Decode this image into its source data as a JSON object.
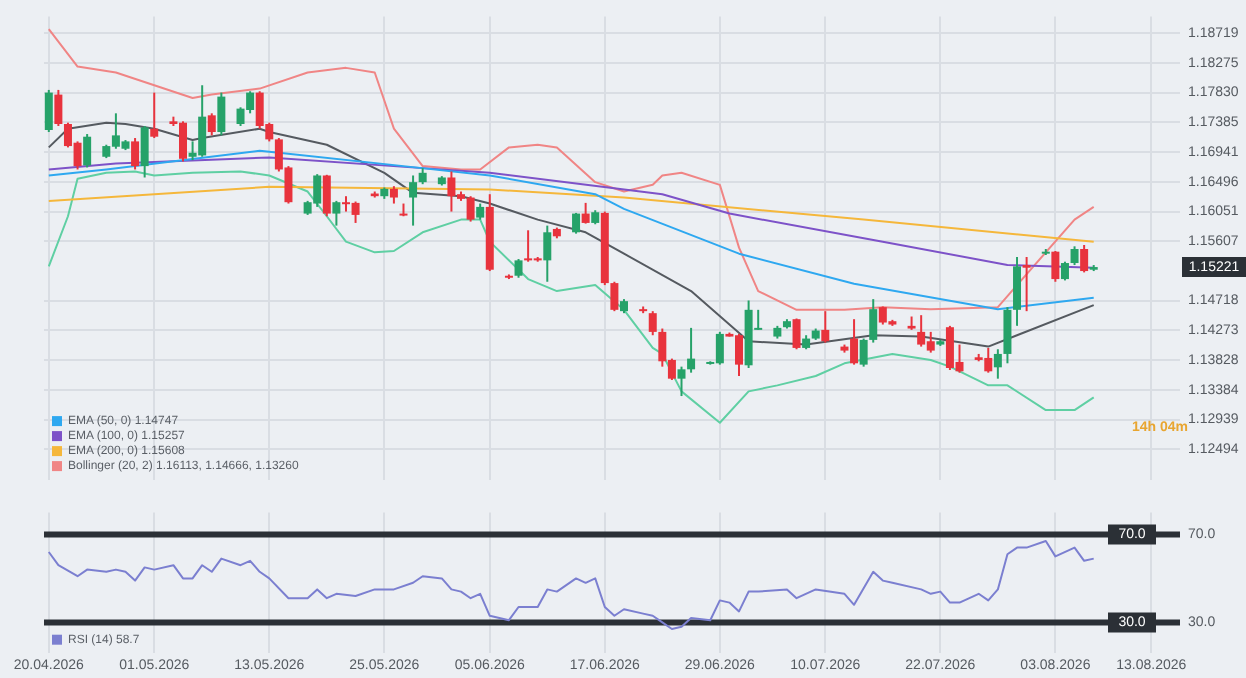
{
  "chart_data": [
    {
      "type": "candlestick",
      "x": [
        "2026-04-20",
        "2026-04-21",
        "2026-04-22",
        "2026-04-23",
        "2026-04-24",
        "2026-04-26",
        "2026-04-27",
        "2026-04-28",
        "2026-04-29",
        "2026-04-30",
        "2026-05-01",
        "2026-05-03",
        "2026-05-04",
        "2026-05-05",
        "2026-05-06",
        "2026-05-07",
        "2026-05-08",
        "2026-05-10",
        "2026-05-11",
        "2026-05-12",
        "2026-05-13",
        "2026-05-14",
        "2026-05-15",
        "2026-05-17",
        "2026-05-18",
        "2026-05-19",
        "2026-05-20",
        "2026-05-21",
        "2026-05-22",
        "2026-05-24",
        "2026-05-25",
        "2026-05-26",
        "2026-05-27",
        "2026-05-28",
        "2026-05-29",
        "2026-05-31",
        "2026-06-01",
        "2026-06-02",
        "2026-06-03",
        "2026-06-04",
        "2026-06-05",
        "2026-06-07",
        "2026-06-08",
        "2026-06-09",
        "2026-06-10",
        "2026-06-11",
        "2026-06-12",
        "2026-06-14",
        "2026-06-15",
        "2026-06-16",
        "2026-06-17",
        "2026-06-18",
        "2026-06-19",
        "2026-06-21",
        "2026-06-22",
        "2026-06-23",
        "2026-06-24",
        "2026-06-25",
        "2026-06-26",
        "2026-06-28",
        "2026-06-29",
        "2026-06-30",
        "2026-07-01",
        "2026-07-02",
        "2026-07-03",
        "2026-07-05",
        "2026-07-06",
        "2026-07-07",
        "2026-07-08",
        "2026-07-09",
        "2026-07-10",
        "2026-07-12",
        "2026-07-13",
        "2026-07-14",
        "2026-07-15",
        "2026-07-16",
        "2026-07-17",
        "2026-07-19",
        "2026-07-20",
        "2026-07-21",
        "2026-07-22",
        "2026-07-23",
        "2026-07-24",
        "2026-07-26",
        "2026-07-27",
        "2026-07-28",
        "2026-07-29",
        "2026-07-30",
        "2026-07-31",
        "2026-08-02",
        "2026-08-03",
        "2026-08-04",
        "2026-08-05",
        "2026-08-06",
        "2026-08-07"
      ],
      "ohlc": [
        [
          1.1727,
          1.1787,
          1.1724,
          1.1783
        ],
        [
          1.178,
          1.1787,
          1.1733,
          1.1736
        ],
        [
          1.1736,
          1.1738,
          1.1701,
          1.1703
        ],
        [
          1.1708,
          1.171,
          1.1668,
          1.1673
        ],
        [
          1.1674,
          1.1721,
          1.1671,
          1.1717
        ],
        [
          1.1687,
          1.1705,
          1.1685,
          1.1703
        ],
        [
          1.1702,
          1.1752,
          1.1699,
          1.1719
        ],
        [
          1.1699,
          1.1712,
          1.1697,
          1.171
        ],
        [
          1.171,
          1.1715,
          1.1668,
          1.1673
        ],
        [
          1.1673,
          1.1733,
          1.1656,
          1.1731
        ],
        [
          1.1729,
          1.1783,
          1.1715,
          1.1717
        ],
        [
          1.174,
          1.1747,
          1.1733,
          1.1736
        ],
        [
          1.1738,
          1.174,
          1.168,
          1.1684
        ],
        [
          1.1687,
          1.171,
          1.1682,
          1.1693
        ],
        [
          1.1689,
          1.1794,
          1.1687,
          1.1747
        ],
        [
          1.1749,
          1.1752,
          1.1719,
          1.1724
        ],
        [
          1.1724,
          1.1783,
          1.1719,
          1.1777
        ],
        [
          1.1736,
          1.1761,
          1.1733,
          1.1759
        ],
        [
          1.1757,
          1.1785,
          1.1752,
          1.1783
        ],
        [
          1.1783,
          1.1785,
          1.1729,
          1.1733
        ],
        [
          1.1736,
          1.1738,
          1.171,
          1.1713
        ],
        [
          1.1713,
          1.1715,
          1.1665,
          1.1668
        ],
        [
          1.1671,
          1.1673,
          1.1617,
          1.1619
        ],
        [
          1.1602,
          1.1621,
          1.16,
          1.1619
        ],
        [
          1.1617,
          1.1661,
          1.1612,
          1.1659
        ],
        [
          1.1659,
          1.166,
          1.1598,
          1.1602
        ],
        [
          1.1602,
          1.1621,
          1.1584,
          1.1619
        ],
        [
          1.1619,
          1.1628,
          1.1605,
          1.1617
        ],
        [
          1.1618,
          1.162,
          1.1588,
          1.16
        ],
        [
          1.1632,
          1.1635,
          1.1626,
          1.1628
        ],
        [
          1.1628,
          1.1641,
          1.1624,
          1.1639
        ],
        [
          1.1639,
          1.1643,
          1.1617,
          1.1626
        ],
        [
          1.1602,
          1.1617,
          1.1598,
          1.16
        ],
        [
          1.1626,
          1.1659,
          1.1584,
          1.1649
        ],
        [
          1.1649,
          1.167,
          1.1646,
          1.1663
        ],
        [
          1.1646,
          1.1658,
          1.1644,
          1.1656
        ],
        [
          1.1656,
          1.1665,
          1.1605,
          1.1628
        ],
        [
          1.1631,
          1.1635,
          1.1621,
          1.1624
        ],
        [
          1.1626,
          1.1628,
          1.159,
          1.1593
        ],
        [
          1.1596,
          1.1617,
          1.1593,
          1.1612
        ],
        [
          1.1612,
          1.1631,
          1.1516,
          1.1518
        ],
        [
          1.1509,
          1.1511,
          1.1504,
          1.1506
        ],
        [
          1.1509,
          1.1534,
          1.1506,
          1.1532
        ],
        [
          1.1535,
          1.1577,
          1.153,
          1.1532
        ],
        [
          1.1535,
          1.1537,
          1.153,
          1.1532
        ],
        [
          1.1532,
          1.1584,
          1.15,
          1.1574
        ],
        [
          1.1579,
          1.1581,
          1.1565,
          1.1568
        ],
        [
          1.1574,
          1.1603,
          1.1572,
          1.1602
        ],
        [
          1.1602,
          1.1618,
          1.1587,
          1.1588
        ],
        [
          1.1588,
          1.1607,
          1.1586,
          1.1604
        ],
        [
          1.1603,
          1.1605,
          1.1495,
          1.1498
        ],
        [
          1.1498,
          1.15,
          1.1456,
          1.1458
        ],
        [
          1.1456,
          1.1474,
          1.1453,
          1.1471
        ],
        [
          1.1459,
          1.1463,
          1.1453,
          1.1456
        ],
        [
          1.1453,
          1.1456,
          1.142,
          1.1425
        ],
        [
          1.1425,
          1.143,
          1.1373,
          1.1381
        ],
        [
          1.1383,
          1.1385,
          1.1353,
          1.1355
        ],
        [
          1.1355,
          1.1373,
          1.1329,
          1.1369
        ],
        [
          1.1369,
          1.1431,
          1.1364,
          1.1385
        ],
        [
          1.1378,
          1.1381,
          1.1376,
          1.138
        ],
        [
          1.1378,
          1.1425,
          1.1376,
          1.1422
        ],
        [
          1.1422,
          1.1424,
          1.1418,
          1.1418
        ],
        [
          1.142,
          1.1422,
          1.1359,
          1.1376
        ],
        [
          1.1375,
          1.1472,
          1.1371,
          1.1458
        ],
        [
          1.143,
          1.1458,
          1.1428,
          1.1431
        ],
        [
          1.1418,
          1.1434,
          1.1415,
          1.1431
        ],
        [
          1.1432,
          1.1444,
          1.143,
          1.1441
        ],
        [
          1.1444,
          1.1445,
          1.1399,
          1.1401
        ],
        [
          1.1401,
          1.142,
          1.1399,
          1.1415
        ],
        [
          1.1415,
          1.143,
          1.1413,
          1.1427
        ],
        [
          1.1428,
          1.1456,
          1.1409,
          1.1411
        ],
        [
          1.1403,
          1.1406,
          1.1394,
          1.1397
        ],
        [
          1.1415,
          1.1444,
          1.1376,
          1.1378
        ],
        [
          1.1376,
          1.1415,
          1.1373,
          1.1413
        ],
        [
          1.1413,
          1.1474,
          1.1409,
          1.1459
        ],
        [
          1.1462,
          1.1463,
          1.1436,
          1.1439
        ],
        [
          1.1441,
          1.1443,
          1.1434,
          1.1436
        ],
        [
          1.1434,
          1.1448,
          1.1428,
          1.143
        ],
        [
          1.1425,
          1.145,
          1.1403,
          1.1406
        ],
        [
          1.1411,
          1.1425,
          1.1394,
          1.1397
        ],
        [
          1.1406,
          1.1413,
          1.1404,
          1.1411
        ],
        [
          1.1432,
          1.1434,
          1.1368,
          1.1371
        ],
        [
          1.138,
          1.1406,
          1.1364,
          1.1366
        ],
        [
          1.1387,
          1.1392,
          1.1381,
          1.1383
        ],
        [
          1.1386,
          1.1401,
          1.1364,
          1.1366
        ],
        [
          1.1372,
          1.1399,
          1.1355,
          1.1392
        ],
        [
          1.1392,
          1.1462,
          1.1378,
          1.1458
        ],
        [
          1.1458,
          1.1537,
          1.1434,
          1.1523
        ],
        [
          1.1525,
          1.1537,
          1.1456,
          1.1521
        ],
        [
          1.1542,
          1.1549,
          1.154,
          1.1545
        ],
        [
          1.1545,
          1.1546,
          1.15,
          1.1504
        ],
        [
          1.1504,
          1.153,
          1.1502,
          1.1528
        ],
        [
          1.1528,
          1.1553,
          1.1525,
          1.1549
        ],
        [
          1.1549,
          1.1555,
          1.1514,
          1.1516
        ],
        [
          1.1518,
          1.1525,
          1.1516,
          1.1522
        ]
      ],
      "colors": [
        "#26a269",
        "#e8333d",
        "#e8333d",
        "#e8333d",
        "#26a269",
        "#26a269",
        "#26a269",
        "#26a269",
        "#e8333d",
        "#26a269",
        "#e8333d",
        "#e8333d",
        "#e8333d",
        "#26a269",
        "#26a269",
        "#e8333d",
        "#26a269",
        "#26a269",
        "#26a269",
        "#e8333d",
        "#e8333d",
        "#e8333d",
        "#e8333d",
        "#26a269",
        "#26a269",
        "#e8333d",
        "#26a269",
        "#e8333d",
        "#e8333d",
        "#e8333d",
        "#26a269",
        "#e8333d",
        "#e8333d",
        "#26a269",
        "#26a269",
        "#26a269",
        "#e8333d",
        "#e8333d",
        "#e8333d",
        "#26a269",
        "#e8333d",
        "#e8333d",
        "#26a269",
        "#e8333d",
        "#e8333d",
        "#26a269",
        "#e8333d",
        "#26a269",
        "#e8333d",
        "#26a269",
        "#e8333d",
        "#e8333d",
        "#26a269",
        "#e8333d",
        "#e8333d",
        "#e8333d",
        "#e8333d",
        "#26a269",
        "#26a269",
        "#26a269",
        "#26a269",
        "#e8333d",
        "#e8333d",
        "#26a269",
        "#26a269",
        "#26a269",
        "#26a269",
        "#e8333d",
        "#26a269",
        "#26a269",
        "#e8333d",
        "#e8333d",
        "#e8333d",
        "#26a269",
        "#26a269",
        "#e8333d",
        "#e8333d",
        "#e8333d",
        "#e8333d",
        "#e8333d",
        "#26a269",
        "#e8333d",
        "#e8333d",
        "#e8333d",
        "#e8333d",
        "#26a269",
        "#26a269",
        "#26a269",
        "#e8333d",
        "#26a269",
        "#e8333d",
        "#26a269",
        "#26a269",
        "#e8333d",
        "#26a269"
      ],
      "series": [
        {
          "type": "line",
          "name": "EMA (50, 0) 1.14747",
          "color": "#2ea8f0",
          "x": [
            "2026-04-20",
            "2026-04-26",
            "2026-05-12",
            "2026-05-14",
            "2026-05-27",
            "2026-06-05",
            "2026-06-16",
            "2026-06-19",
            "2026-07-01",
            "2026-07-13",
            "2026-07-28",
            "2026-08-07"
          ],
          "values": [
            1.1659,
            1.1668,
            1.1696,
            1.1693,
            1.1673,
            1.1659,
            1.1631,
            1.1609,
            1.1542,
            1.1497,
            1.1459,
            1.1476
          ]
        },
        {
          "type": "line",
          "name": "EMA (100, 0) 1.15257",
          "color": "#7d52c8",
          "x": [
            "2026-04-20",
            "2026-04-27",
            "2026-05-13",
            "2026-05-29",
            "2026-06-05",
            "2026-06-23",
            "2026-06-30",
            "2026-07-16",
            "2026-07-29",
            "2026-08-07"
          ],
          "values": [
            1.1668,
            1.1677,
            1.1686,
            1.167,
            1.1663,
            1.1631,
            1.1602,
            1.156,
            1.1525,
            1.1521
          ]
        },
        {
          "type": "line",
          "name": "EMA (200, 0) 1.15608",
          "color": "#f5b73b",
          "x": [
            "2026-04-20",
            "2026-05-13",
            "2026-06-05",
            "2026-06-19",
            "2026-07-14",
            "2026-08-07"
          ],
          "values": [
            1.1621,
            1.1642,
            1.1638,
            1.1626,
            1.1593,
            1.156
          ]
        },
        {
          "type": "line",
          "name": "Bollinger (20, 2) 1.16113, 1.14666, 1.13260",
          "color": "#f08585",
          "x": [
            "2026-04-20",
            "2026-04-23",
            "2026-04-27",
            "2026-05-01",
            "2026-05-05",
            "2026-05-07",
            "2026-05-12",
            "2026-05-17",
            "2026-05-21",
            "2026-05-24",
            "2026-05-26",
            "2026-05-29",
            "2026-06-02",
            "2026-06-04",
            "2026-06-07",
            "2026-06-10",
            "2026-06-12",
            "2026-06-16",
            "2026-06-19",
            "2026-06-22",
            "2026-06-23",
            "2026-06-25",
            "2026-06-29",
            "2026-07-01",
            "2026-07-03",
            "2026-07-07",
            "2026-07-12",
            "2026-07-16",
            "2026-07-21",
            "2026-07-28",
            "2026-07-30",
            "2026-08-05",
            "2026-08-07"
          ],
          "values": [
            1.1878,
            1.1822,
            1.1813,
            1.1794,
            1.1775,
            1.178,
            1.1789,
            1.1813,
            1.182,
            1.1813,
            1.1729,
            1.1673,
            1.1668,
            1.1668,
            1.1701,
            1.1705,
            1.1701,
            1.1649,
            1.1635,
            1.1645,
            1.1659,
            1.1663,
            1.1645,
            1.1551,
            1.1486,
            1.1458,
            1.1458,
            1.1462,
            1.1459,
            1.1462,
            1.1495,
            1.1593,
            1.1612
          ]
        },
        {
          "type": "line",
          "color": "#555a60",
          "x": [
            "2026-04-20",
            "2026-04-22",
            "2026-04-26",
            "2026-04-28",
            "2026-05-01",
            "2026-05-05",
            "2026-05-06",
            "2026-05-12",
            "2026-05-13",
            "2026-05-19",
            "2026-05-25",
            "2026-05-28",
            "2026-06-02",
            "2026-06-05",
            "2026-06-10",
            "2026-06-15",
            "2026-06-19",
            "2026-06-26",
            "2026-07-02",
            "2026-07-08",
            "2026-07-15",
            "2026-07-20",
            "2026-07-27",
            "2026-07-30",
            "2026-08-07"
          ],
          "values": [
            1.1701,
            1.1729,
            1.1738,
            1.1736,
            1.1729,
            1.1712,
            1.1715,
            1.1729,
            1.1724,
            1.1705,
            1.1663,
            1.1633,
            1.1628,
            1.1617,
            1.1593,
            1.1574,
            1.1542,
            1.1486,
            1.1411,
            1.1406,
            1.142,
            1.1418,
            1.1403,
            1.142,
            1.1465
          ]
        },
        {
          "type": "line",
          "color": "#5fcfa3",
          "x": [
            "2026-04-20",
            "2026-04-22",
            "2026-04-23",
            "2026-04-26",
            "2026-04-29",
            "2026-05-01",
            "2026-05-05",
            "2026-05-10",
            "2026-05-13",
            "2026-05-17",
            "2026-05-19",
            "2026-05-21",
            "2026-05-24",
            "2026-05-26",
            "2026-05-29",
            "2026-06-02",
            "2026-06-04",
            "2026-06-05",
            "2026-06-09",
            "2026-06-12",
            "2026-06-16",
            "2026-06-19",
            "2026-06-22",
            "2026-06-23",
            "2026-06-25",
            "2026-06-29",
            "2026-07-02",
            "2026-07-05",
            "2026-07-09",
            "2026-07-12",
            "2026-07-17",
            "2026-07-21",
            "2026-07-23",
            "2026-07-27",
            "2026-07-29",
            "2026-08-02",
            "2026-08-05",
            "2026-08-07"
          ],
          "values": [
            1.1523,
            1.1598,
            1.1654,
            1.1663,
            1.1665,
            1.1659,
            1.1663,
            1.1665,
            1.1659,
            1.1635,
            1.1598,
            1.156,
            1.1544,
            1.1546,
            1.1574,
            1.1593,
            1.1593,
            1.156,
            1.1504,
            1.1486,
            1.1495,
            1.1458,
            1.1401,
            1.1392,
            1.1336,
            1.1289,
            1.1336,
            1.1345,
            1.1359,
            1.1378,
            1.1392,
            1.1383,
            1.1373,
            1.1345,
            1.1345,
            1.1308,
            1.1308,
            1.1327
          ]
        }
      ],
      "xlim": [
        "2026-04-19T12:00",
        "2026-08-16T00:00"
      ],
      "ylim": [
        1.1204,
        1.1897
      ],
      "xticks": [
        {
          "value": "2026-04-20",
          "label": null
        },
        {
          "value": "2026-05-01",
          "label": null
        },
        {
          "value": "2026-05-13",
          "label": null
        },
        {
          "value": "2026-05-25",
          "label": null
        },
        {
          "value": "2026-06-05",
          "label": null
        },
        {
          "value": "2026-06-17",
          "label": null
        },
        {
          "value": "2026-06-29",
          "label": null
        },
        {
          "value": "2026-07-10",
          "label": null
        },
        {
          "value": "2026-07-22",
          "label": null
        },
        {
          "value": "2026-08-03",
          "label": null
        },
        {
          "value": "2026-08-13",
          "label": null
        }
      ],
      "yticks": [
        1.18719,
        1.18275,
        {
          "value": 1.1783,
          "label": "1.17830"
        },
        1.17385,
        1.16941,
        1.16496,
        1.16051,
        1.15607,
        1.14718,
        1.14273,
        1.13828,
        1.13384,
        1.12939,
        1.12494
      ],
      "grid": true,
      "legend": "bottom left",
      "marker": "none",
      "tick_labels": "y",
      "annotations": [
        {
          "text": "1.15221",
          "y": 1.15221
        },
        "14h 04m"
      ]
    },
    {
      "type": "line",
      "series": [
        {
          "name": "RSI (14) 58.7",
          "color": "#7b7fd0",
          "x": [
            "2026-04-20",
            "2026-04-21",
            "2026-04-23",
            "2026-04-24",
            "2026-04-26",
            "2026-04-27",
            "2026-04-28",
            "2026-04-29",
            "2026-04-30",
            "2026-05-01",
            "2026-05-03",
            "2026-05-04",
            "2026-05-05",
            "2026-05-06",
            "2026-05-07",
            "2026-05-08",
            "2026-05-10",
            "2026-05-11",
            "2026-05-12",
            "2026-05-13",
            "2026-05-15",
            "2026-05-17",
            "2026-05-18",
            "2026-05-19",
            "2026-05-20",
            "2026-05-22",
            "2026-05-24",
            "2026-05-25",
            "2026-05-26",
            "2026-05-28",
            "2026-05-29",
            "2026-05-31",
            "2026-06-01",
            "2026-06-02",
            "2026-06-03",
            "2026-06-04",
            "2026-06-05",
            "2026-06-07",
            "2026-06-08",
            "2026-06-10",
            "2026-06-11",
            "2026-06-12",
            "2026-06-14",
            "2026-06-15",
            "2026-06-16",
            "2026-06-17",
            "2026-06-18",
            "2026-06-19",
            "2026-06-21",
            "2026-06-22",
            "2026-06-23",
            "2026-06-24",
            "2026-06-25",
            "2026-06-26",
            "2026-06-28",
            "2026-06-29",
            "2026-06-30",
            "2026-07-01",
            "2026-07-02",
            "2026-07-03",
            "2026-07-06",
            "2026-07-07",
            "2026-07-09",
            "2026-07-12",
            "2026-07-13",
            "2026-07-15",
            "2026-07-16",
            "2026-07-17",
            "2026-07-20",
            "2026-07-21",
            "2026-07-22",
            "2026-07-23",
            "2026-07-24",
            "2026-07-26",
            "2026-07-27",
            "2026-07-28",
            "2026-07-29",
            "2026-07-30",
            "2026-07-31",
            "2026-08-02",
            "2026-08-03",
            "2026-08-05",
            "2026-08-06",
            "2026-08-07"
          ],
          "values": [
            62,
            56,
            51,
            54,
            53,
            54,
            53,
            49,
            55,
            54,
            56,
            50,
            50,
            56,
            53,
            59,
            56,
            58,
            53,
            50,
            41,
            41,
            45,
            41,
            43,
            42,
            45,
            45,
            45,
            48,
            51,
            50,
            45,
            44,
            41,
            43,
            33,
            31,
            37,
            37,
            45,
            44,
            50,
            48,
            50,
            37,
            33,
            36,
            34,
            33,
            30,
            27,
            28,
            32,
            31,
            40,
            39,
            35,
            44,
            44,
            45,
            41,
            45,
            43,
            38,
            53,
            49,
            48,
            45,
            43,
            44,
            39,
            39,
            43,
            40,
            45,
            61,
            64,
            64,
            67,
            60,
            64,
            58,
            59
          ]
        }
      ],
      "xlim": [
        "2026-04-19T12:00",
        "2026-08-16T00:00"
      ],
      "ylim": [
        16,
        80
      ],
      "xticks": [
        {
          "value": "2026-04-20",
          "label": "20.04.2026"
        },
        {
          "value": "2026-05-01",
          "label": "01.05.2026"
        },
        {
          "value": "2026-05-13",
          "label": "13.05.2026"
        },
        {
          "value": "2026-05-25",
          "label": "25.05.2026"
        },
        {
          "value": "2026-06-05",
          "label": "05.06.2026"
        },
        {
          "value": "2026-06-17",
          "label": "17.06.2026"
        },
        {
          "value": "2026-06-29",
          "label": "29.06.2026"
        },
        {
          "value": "2026-07-10",
          "label": "10.07.2026"
        },
        {
          "value": "2026-07-22",
          "label": "22.07.2026"
        },
        {
          "value": "2026-08-03",
          "label": "03.08.2026"
        },
        {
          "value": "2026-08-13",
          "label": "13.08.2026"
        }
      ],
      "yticks": [
        {
          "value": 70,
          "label": "70.0"
        },
        {
          "value": 30,
          "label": "30.0"
        }
      ],
      "ref_lines": [
        {
          "axis": "y",
          "value": 70,
          "label": "70.0",
          "color": "#2b3036"
        },
        {
          "axis": "y",
          "value": 30,
          "label": "30.0",
          "color": "#2b3036"
        }
      ],
      "grid": "x",
      "legend": "bottom left",
      "marker": "none"
    }
  ]
}
